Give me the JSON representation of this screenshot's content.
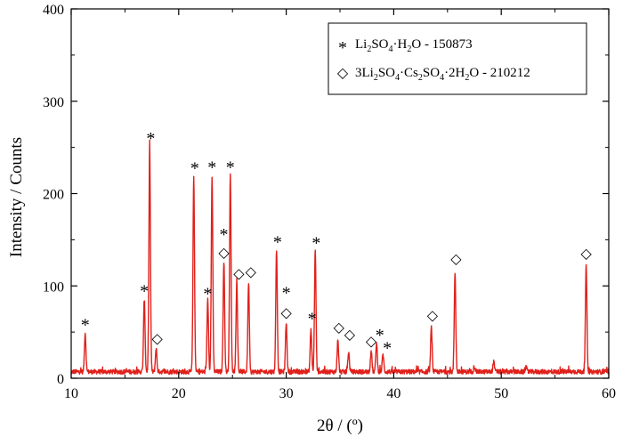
{
  "chart_data": {
    "type": "line",
    "xlabel": "2θ / (º)",
    "ylabel": "Intensity / Counts",
    "xlim": [
      10,
      60
    ],
    "ylim": [
      0,
      400
    ],
    "xticks": [
      "10",
      "20",
      "30",
      "40",
      "50",
      "60"
    ],
    "yticks": [
      "0",
      "100",
      "200",
      "300",
      "400"
    ],
    "grid": false,
    "legend_position": "top-right",
    "colors": {
      "line": "#e0201b",
      "axis": "#000000"
    },
    "legend": [
      {
        "symbol": "*",
        "parts": [
          [
            "Li",
            ""
          ],
          [
            "2",
            "sub"
          ],
          [
            "SO",
            ""
          ],
          [
            "4",
            "sub"
          ],
          [
            "·H",
            ""
          ],
          [
            "2",
            "sub"
          ],
          [
            "O - 150873",
            ""
          ]
        ]
      },
      {
        "symbol": "◇",
        "parts": [
          [
            "3Li",
            ""
          ],
          [
            "2",
            "sub"
          ],
          [
            "SO",
            ""
          ],
          [
            "4",
            "sub"
          ],
          [
            "·Cs",
            ""
          ],
          [
            "2",
            "sub"
          ],
          [
            "SO",
            ""
          ],
          [
            "4",
            "sub"
          ],
          [
            "·2H",
            ""
          ],
          [
            "2",
            "sub"
          ],
          [
            "O - 210212",
            ""
          ]
        ]
      }
    ],
    "series": [
      {
        "baseline": 7,
        "peaks": [
          {
            "x": 11.3,
            "y": 49
          },
          {
            "x": 16.8,
            "y": 86
          },
          {
            "x": 17.3,
            "y": 250
          },
          {
            "x": 17.9,
            "y": 32
          },
          {
            "x": 21.4,
            "y": 219
          },
          {
            "x": 22.7,
            "y": 86
          },
          {
            "x": 23.1,
            "y": 219
          },
          {
            "x": 24.2,
            "y": 127
          },
          {
            "x": 24.8,
            "y": 219
          },
          {
            "x": 25.4,
            "y": 103
          },
          {
            "x": 26.5,
            "y": 104
          },
          {
            "x": 29.1,
            "y": 140
          },
          {
            "x": 30.0,
            "y": 60
          },
          {
            "x": 32.3,
            "y": 53
          },
          {
            "x": 32.7,
            "y": 139
          },
          {
            "x": 34.8,
            "y": 40
          },
          {
            "x": 35.8,
            "y": 28
          },
          {
            "x": 37.9,
            "y": 30
          },
          {
            "x": 38.4,
            "y": 38
          },
          {
            "x": 39.0,
            "y": 26
          },
          {
            "x": 43.5,
            "y": 55
          },
          {
            "x": 45.7,
            "y": 115
          },
          {
            "x": 47.5,
            "y": 13
          },
          {
            "x": 49.3,
            "y": 18
          },
          {
            "x": 52.3,
            "y": 12
          },
          {
            "x": 57.9,
            "y": 122
          }
        ]
      }
    ],
    "annotations": [
      {
        "x": 11.3,
        "y": 61,
        "symbol": "*"
      },
      {
        "x": 16.8,
        "y": 98,
        "symbol": "*"
      },
      {
        "x": 17.4,
        "y": 263,
        "symbol": "*"
      },
      {
        "x": 18.0,
        "y": 44,
        "symbol": "◇"
      },
      {
        "x": 21.5,
        "y": 231,
        "symbol": "*"
      },
      {
        "x": 22.7,
        "y": 95,
        "symbol": "*"
      },
      {
        "x": 23.1,
        "y": 232,
        "symbol": "*"
      },
      {
        "x": 24.2,
        "y": 159,
        "symbol": "*"
      },
      {
        "x": 24.2,
        "y": 137,
        "symbol": "◇"
      },
      {
        "x": 24.8,
        "y": 232,
        "symbol": "*"
      },
      {
        "x": 25.6,
        "y": 114,
        "symbol": "◇"
      },
      {
        "x": 26.7,
        "y": 116,
        "symbol": "◇"
      },
      {
        "x": 29.2,
        "y": 151,
        "symbol": "*"
      },
      {
        "x": 30.0,
        "y": 96,
        "symbol": "*"
      },
      {
        "x": 30.0,
        "y": 72,
        "symbol": "◇"
      },
      {
        "x": 32.4,
        "y": 68,
        "symbol": "*"
      },
      {
        "x": 32.8,
        "y": 150,
        "symbol": "*"
      },
      {
        "x": 34.9,
        "y": 56,
        "symbol": "◇"
      },
      {
        "x": 35.9,
        "y": 48,
        "symbol": "◇"
      },
      {
        "x": 37.9,
        "y": 41,
        "symbol": "◇"
      },
      {
        "x": 38.7,
        "y": 50,
        "symbol": "*"
      },
      {
        "x": 39.4,
        "y": 36,
        "symbol": "*"
      },
      {
        "x": 43.6,
        "y": 69,
        "symbol": "◇"
      },
      {
        "x": 45.8,
        "y": 130,
        "symbol": "◇"
      },
      {
        "x": 57.9,
        "y": 136,
        "symbol": "◇"
      }
    ]
  }
}
